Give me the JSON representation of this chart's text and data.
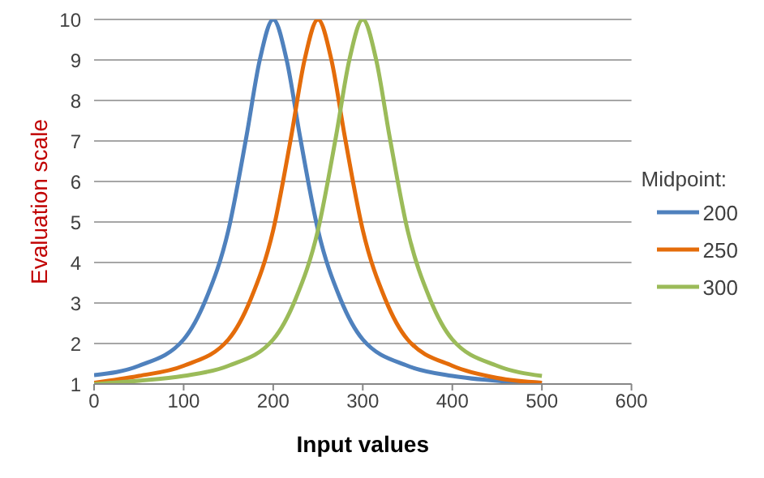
{
  "chart_data": {
    "type": "line",
    "xlabel": "Input values",
    "ylabel": "Evaluation scale",
    "legend_title": "Midpoint:",
    "xlim": [
      0,
      600
    ],
    "xticks": [
      0,
      100,
      200,
      300,
      400,
      500,
      600
    ],
    "ylim": [
      1,
      10
    ],
    "yticks": [
      1,
      2,
      3,
      4,
      5,
      6,
      7,
      8,
      9,
      10
    ],
    "grid": "y",
    "legend": "right",
    "marker": "none",
    "line_style": "solid",
    "series": [
      {
        "name": "200",
        "color": "#4f81bd",
        "x": [
          0,
          50,
          100,
          125,
          150,
          170,
          185,
          200,
          215,
          230,
          250,
          275,
          300,
          350,
          400,
          450,
          500
        ],
        "values": [
          1.22,
          1.45,
          2.1,
          3.1,
          4.8,
          7.1,
          9,
          10,
          9,
          7.1,
          4.8,
          3.1,
          2.1,
          1.45,
          1.2,
          1.08,
          1.03
        ]
      },
      {
        "name": "250",
        "color": "#e46c0a",
        "x": [
          0,
          50,
          100,
          150,
          175,
          200,
          220,
          235,
          250,
          265,
          280,
          300,
          325,
          350,
          400,
          450,
          500
        ],
        "values": [
          1.03,
          1.2,
          1.45,
          2.1,
          3.1,
          4.8,
          7.1,
          9,
          10,
          9,
          7.1,
          4.8,
          3.1,
          2.1,
          1.45,
          1.15,
          1.03
        ]
      },
      {
        "name": "300",
        "color": "#9bbb59",
        "x": [
          0,
          50,
          100,
          150,
          200,
          225,
          250,
          270,
          285,
          300,
          315,
          330,
          350,
          375,
          400,
          450,
          500
        ],
        "values": [
          1,
          1.08,
          1.2,
          1.45,
          2.1,
          3.1,
          4.8,
          7.1,
          9,
          10,
          9,
          7.1,
          4.8,
          3.1,
          2.1,
          1.45,
          1.2
        ]
      }
    ]
  }
}
